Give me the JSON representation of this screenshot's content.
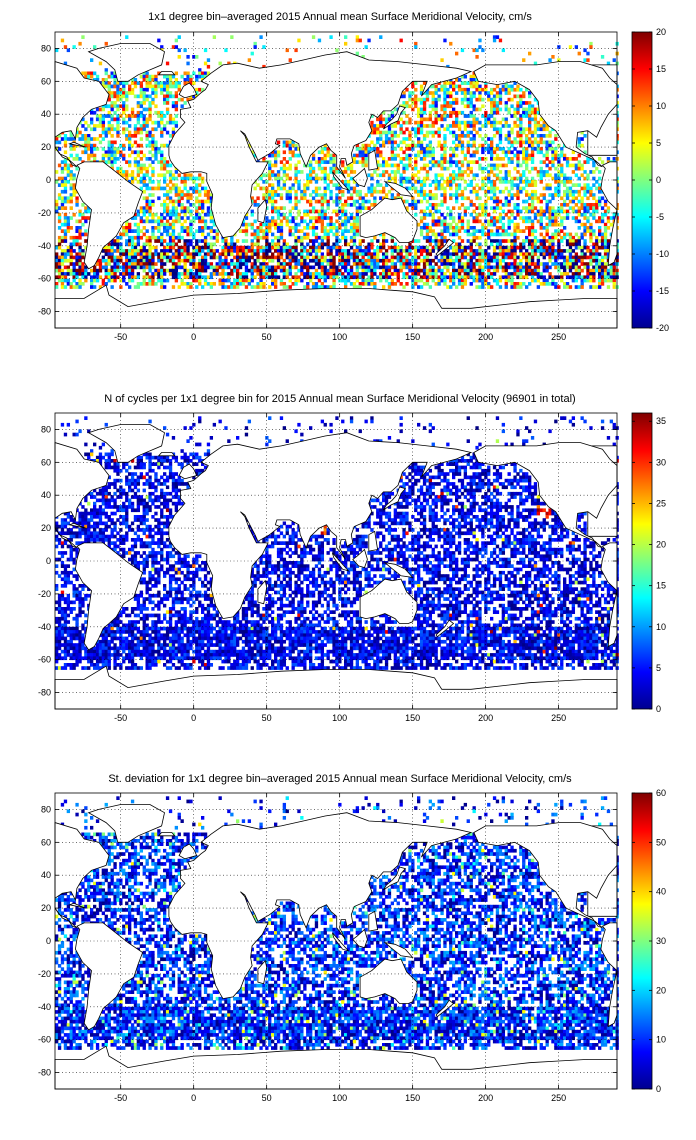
{
  "chart_data": [
    {
      "type": "heatmap",
      "title": "1x1 degree bin–averaged 2015 Annual mean Surface Meridional Velocity, cm/s",
      "xlim": [
        -95,
        290
      ],
      "ylim": [
        -90,
        90
      ],
      "x_ticks": [
        -50,
        0,
        50,
        100,
        150,
        200,
        250
      ],
      "y_ticks": [
        -80,
        -60,
        -40,
        -20,
        0,
        20,
        40,
        60,
        80
      ],
      "grid": true,
      "colorbar": {
        "min": -20,
        "max": 20,
        "ticks": [
          -20,
          -15,
          -10,
          -5,
          0,
          5,
          10,
          15,
          20
        ],
        "colormap": "jet"
      },
      "variable": "annual mean surface meridional velocity"
    },
    {
      "type": "heatmap",
      "title": "N of cycles per 1x1 degree bin for 2015 Annual mean Surface Meridional Velocity (96901 in total)",
      "xlim": [
        -95,
        290
      ],
      "ylim": [
        -90,
        90
      ],
      "x_ticks": [
        -50,
        0,
        50,
        100,
        150,
        200,
        250
      ],
      "y_ticks": [
        -80,
        -60,
        -40,
        -20,
        0,
        20,
        40,
        60,
        80
      ],
      "grid": true,
      "colorbar": {
        "min": 0,
        "max": 36,
        "ticks": [
          0,
          5,
          10,
          15,
          20,
          25,
          30,
          35
        ],
        "colormap": "jet"
      },
      "variable": "number of cycles per bin"
    },
    {
      "type": "heatmap",
      "title": "St. deviation for 1x1 degree bin–averaged 2015 Annual mean Surface Meridional Velocity, cm/s",
      "xlim": [
        -95,
        290
      ],
      "ylim": [
        -90,
        90
      ],
      "x_ticks": [
        -50,
        0,
        50,
        100,
        150,
        200,
        250
      ],
      "y_ticks": [
        -80,
        -60,
        -40,
        -20,
        0,
        20,
        40,
        60,
        80
      ],
      "grid": true,
      "colorbar": {
        "min": 0,
        "max": 60,
        "ticks": [
          0,
          10,
          20,
          30,
          40,
          50,
          60
        ],
        "colormap": "jet"
      },
      "variable": "standard deviation of surface meridional velocity"
    }
  ]
}
